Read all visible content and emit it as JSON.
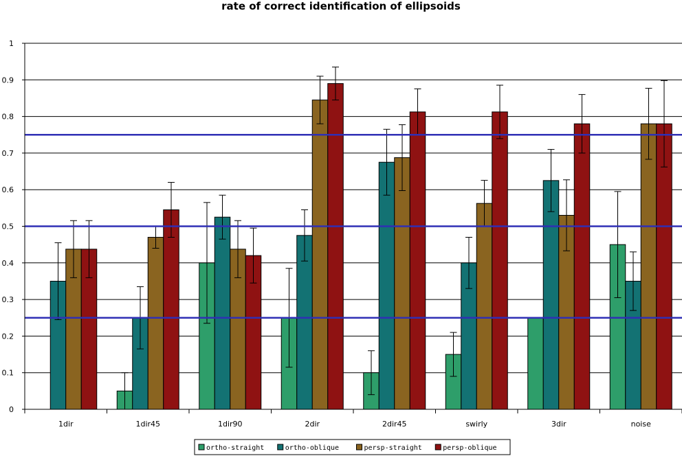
{
  "chart_data": {
    "type": "bar",
    "title": "rate of correct identification of ellipsoids",
    "xlabel": "",
    "ylabel": "",
    "ylim": [
      0,
      1
    ],
    "yticks": [
      "0",
      "0.1",
      "0.2",
      "0.3",
      "0.4",
      "0.5",
      "0.6",
      "0.7",
      "0.8",
      "0.9",
      "1"
    ],
    "grid": true,
    "categories": [
      "1dir",
      "1dir45",
      "1dir90",
      "2dir",
      "2dir45",
      "swirly",
      "3dir",
      "noise"
    ],
    "series": [
      {
        "name": "ortho-straight",
        "color": "#2e9e6a",
        "values": [
          0,
          0.05,
          0.4,
          0.25,
          0.1,
          0.15,
          0.25,
          0.45
        ],
        "err": [
          null,
          0.05,
          0.165,
          0.135,
          0.06,
          0.06,
          null,
          0.145
        ]
      },
      {
        "name": "ortho-oblique",
        "color": "#137273",
        "values": [
          0.35,
          0.25,
          0.525,
          0.475,
          0.675,
          0.4,
          0.625,
          0.35
        ],
        "err": [
          0.105,
          0.085,
          0.06,
          0.07,
          0.09,
          0.07,
          0.085,
          0.08
        ]
      },
      {
        "name": "persp-straight",
        "color": "#8a6420",
        "values": [
          0.4375,
          0.47,
          0.4375,
          0.845,
          0.6875,
          0.5625,
          0.53,
          0.78
        ],
        "err": [
          0.078,
          0.03,
          0.078,
          0.065,
          0.09,
          0.063,
          0.097,
          0.097
        ]
      },
      {
        "name": "persp-oblique",
        "color": "#8f1212",
        "values": [
          0.4375,
          0.545,
          0.42,
          0.89,
          0.8125,
          0.8125,
          0.78,
          0.78
        ],
        "err": [
          0.078,
          0.075,
          0.075,
          0.045,
          0.063,
          0.073,
          0.08,
          0.118
        ]
      }
    ],
    "reference_lines": [
      0.25,
      0.5,
      0.75
    ],
    "reference_line_color": "#2f2fb5",
    "legend_position": "bottom"
  }
}
